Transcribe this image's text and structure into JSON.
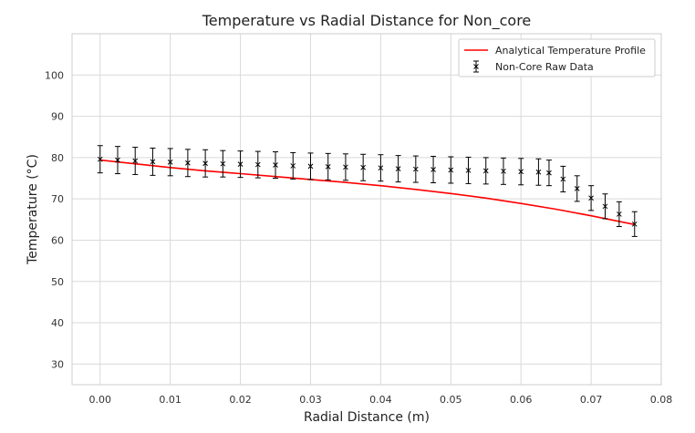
{
  "chart_data": {
    "type": "line",
    "title": "Temperature vs Radial Distance for Non_core",
    "xlabel": "Radial Distance (m)",
    "ylabel": "Temperature (°C)",
    "xlim": [
      -0.004,
      0.08
    ],
    "ylim": [
      25,
      110
    ],
    "xticks": [
      0.0,
      0.01,
      0.02,
      0.03,
      0.04,
      0.05,
      0.06,
      0.07,
      0.08
    ],
    "xtick_labels": [
      "0.00",
      "0.01",
      "0.02",
      "0.03",
      "0.04",
      "0.05",
      "0.06",
      "0.07",
      "0.08"
    ],
    "yticks": [
      30,
      40,
      50,
      60,
      70,
      80,
      90,
      100
    ],
    "ytick_labels": [
      "30",
      "40",
      "50",
      "60",
      "70",
      "80",
      "90",
      "100"
    ],
    "grid": true,
    "legend_position": "top-right",
    "series": [
      {
        "name": "Analytical Temperature Profile",
        "kind": "line",
        "color": "#ff0000",
        "x": [
          0.0,
          0.005,
          0.01,
          0.015,
          0.02,
          0.025,
          0.03,
          0.035,
          0.04,
          0.045,
          0.05,
          0.055,
          0.06,
          0.065,
          0.07,
          0.0762
        ],
        "y": [
          79.4,
          78.5,
          77.6,
          76.8,
          76.1,
          75.4,
          74.7,
          74.0,
          73.2,
          72.3,
          71.3,
          70.2,
          68.9,
          67.5,
          65.9,
          63.8
        ]
      },
      {
        "name": "Non-Core Raw Data",
        "kind": "errorbar",
        "color": "#000000",
        "marker": "x",
        "x": [
          0.0,
          0.0025,
          0.005,
          0.0075,
          0.01,
          0.0125,
          0.015,
          0.0175,
          0.02,
          0.0225,
          0.025,
          0.0275,
          0.03,
          0.0325,
          0.035,
          0.0375,
          0.04,
          0.0425,
          0.045,
          0.0475,
          0.05,
          0.0525,
          0.055,
          0.0575,
          0.06,
          0.0625,
          0.064,
          0.066,
          0.068,
          0.07,
          0.072,
          0.074,
          0.0762
        ],
        "y": [
          79.6,
          79.4,
          79.2,
          79.0,
          78.9,
          78.7,
          78.6,
          78.5,
          78.4,
          78.3,
          78.2,
          78.0,
          77.9,
          77.8,
          77.7,
          77.6,
          77.5,
          77.3,
          77.2,
          77.1,
          77.0,
          76.9,
          76.8,
          76.7,
          76.6,
          76.5,
          76.3,
          74.8,
          72.5,
          70.2,
          68.2,
          66.3,
          63.9
        ],
        "err": [
          3.3,
          3.3,
          3.3,
          3.3,
          3.3,
          3.3,
          3.3,
          3.2,
          3.2,
          3.2,
          3.2,
          3.2,
          3.2,
          3.2,
          3.2,
          3.2,
          3.2,
          3.2,
          3.2,
          3.2,
          3.2,
          3.2,
          3.2,
          3.2,
          3.2,
          3.2,
          3.1,
          3.1,
          3.1,
          3.0,
          3.0,
          3.0,
          3.0
        ]
      }
    ]
  }
}
